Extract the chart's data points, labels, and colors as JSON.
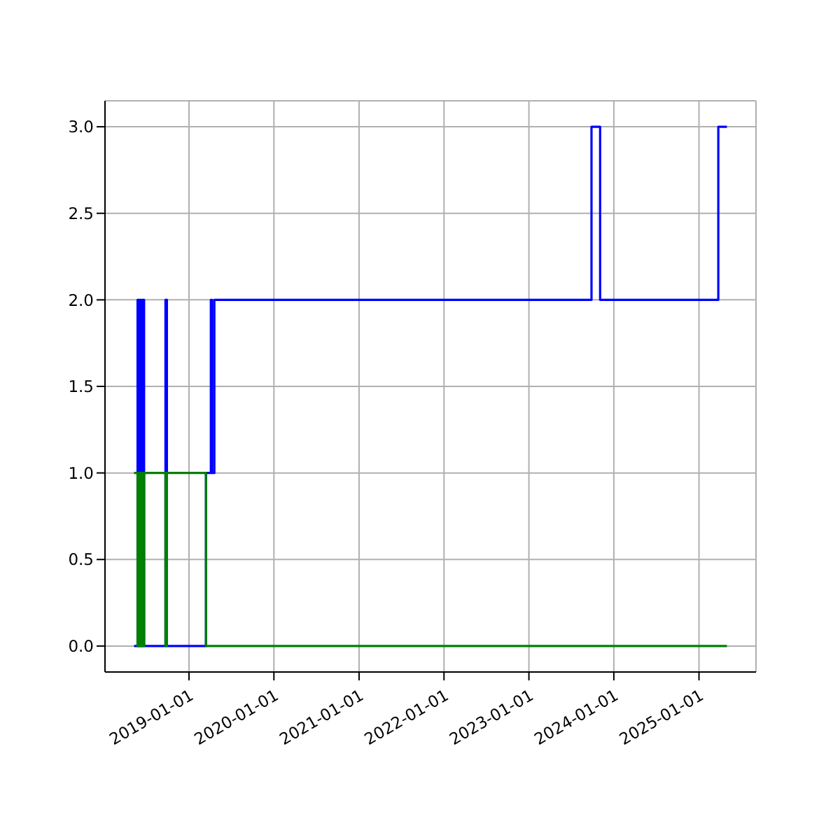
{
  "chart_data": {
    "type": "step",
    "xlim": [
      "2018-01-05",
      "2025-09-03"
    ],
    "ylim": [
      -0.15,
      3.15
    ],
    "xticks": [
      "2019-01-01",
      "2020-01-01",
      "2021-01-01",
      "2022-01-01",
      "2023-01-01",
      "2024-01-01",
      "2025-01-01"
    ],
    "yticks": [
      {
        "value": 0,
        "label": "0.0"
      },
      {
        "value": 0.5,
        "label": "0.5"
      },
      {
        "value": 1,
        "label": "1.0"
      },
      {
        "value": 1.5,
        "label": "1.5"
      },
      {
        "value": 2,
        "label": "2.0"
      },
      {
        "value": 2.5,
        "label": "2.5"
      },
      {
        "value": 3,
        "label": "3.0"
      }
    ],
    "grid": true,
    "legend": false,
    "marker": "none",
    "line_style": "solid",
    "series": [
      {
        "color": "#0000ff",
        "x": [
          "2018-05-10",
          "2018-05-25",
          "2018-06-01",
          "2018-06-05",
          "2018-06-10",
          "2018-06-15",
          "2018-06-22",
          "2018-09-22",
          "2018-09-28",
          "2019-03-15",
          "2019-04-05",
          "2019-04-10",
          "2019-04-20",
          "2023-09-27",
          "2023-11-03",
          "2025-03-25",
          "2025-05-01"
        ],
        "values": [
          0,
          2,
          0,
          2,
          0,
          2,
          0,
          2,
          0,
          1,
          2,
          1,
          2,
          3,
          2,
          3,
          3
        ]
      },
      {
        "color": "#008000",
        "x": [
          "2018-05-10",
          "2018-05-25",
          "2018-06-01",
          "2018-06-05",
          "2018-06-10",
          "2018-06-15",
          "2018-06-22",
          "2018-09-22",
          "2018-09-28",
          "2019-03-15",
          "2025-05-01"
        ],
        "values": [
          1,
          0,
          1,
          0,
          1,
          0,
          1,
          0,
          1,
          0,
          0
        ]
      }
    ]
  }
}
